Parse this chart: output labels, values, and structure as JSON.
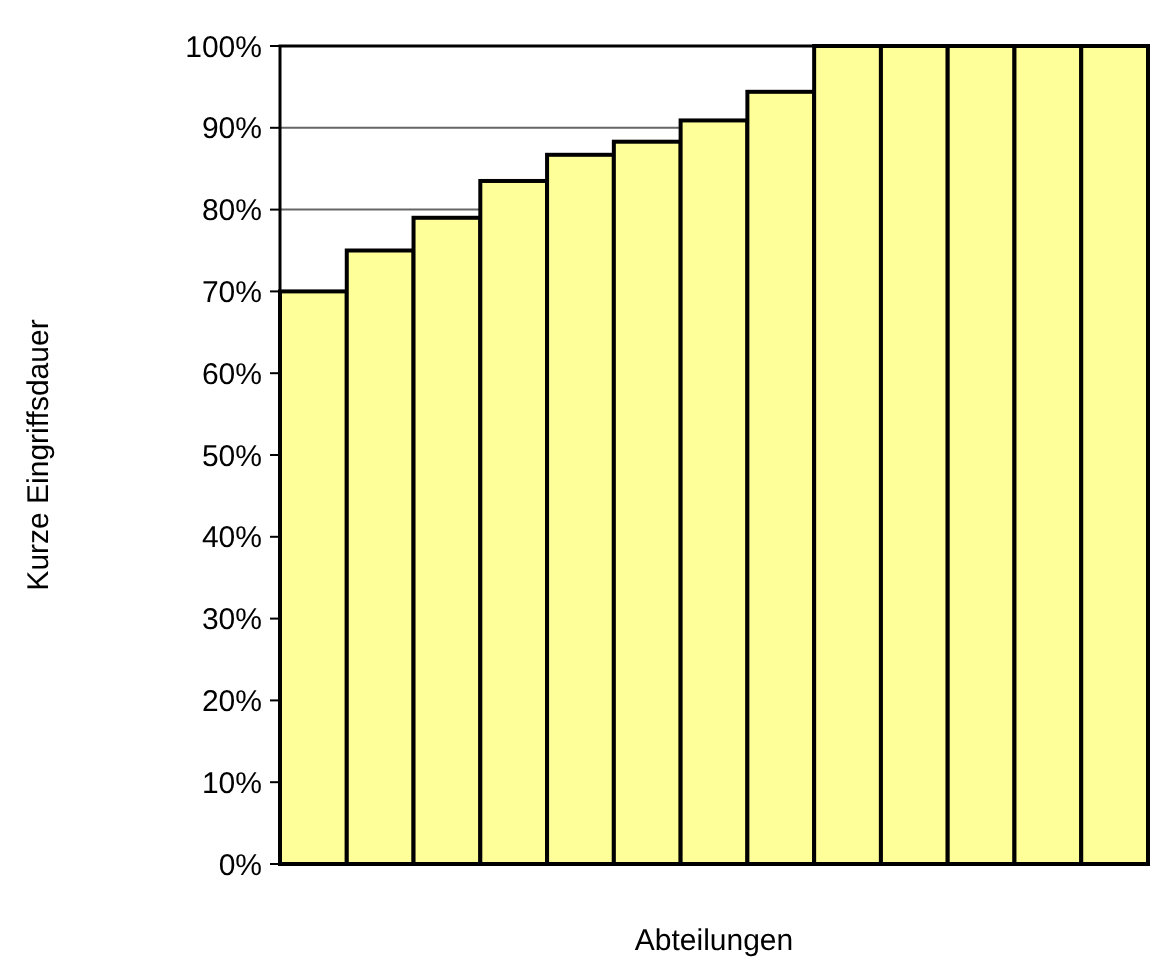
{
  "chart_data": {
    "type": "bar",
    "xlabel": "Abteilungen",
    "ylabel": "Kurze Eingriffsdauer",
    "categories": [
      null,
      null,
      null,
      null,
      null,
      null,
      null,
      null,
      null,
      null,
      null,
      null,
      null
    ],
    "values": [
      70,
      75,
      79,
      83.5,
      86.7,
      88.3,
      90.9,
      94.4,
      100,
      100,
      100,
      100,
      100
    ],
    "color": "#ffff99",
    "ylim": [
      0,
      100
    ],
    "yticks": [
      {
        "value": 0,
        "label": "0%"
      },
      {
        "value": 10,
        "label": "10%"
      },
      {
        "value": 20,
        "label": "20%"
      },
      {
        "value": 30,
        "label": "30%"
      },
      {
        "value": 40,
        "label": "40%"
      },
      {
        "value": 50,
        "label": "50%"
      },
      {
        "value": 60,
        "label": "60%"
      },
      {
        "value": 70,
        "label": "70%"
      },
      {
        "value": 80,
        "label": "80%"
      },
      {
        "value": 90,
        "label": "90%"
      },
      {
        "value": 100,
        "label": "100%"
      }
    ],
    "grid": "y"
  }
}
